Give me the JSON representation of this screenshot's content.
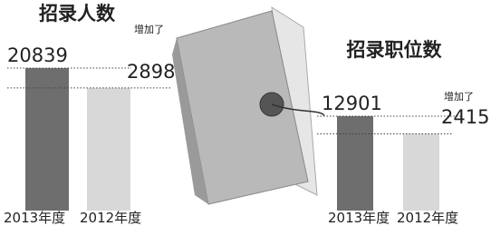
{
  "chart_data": [
    {
      "type": "bar",
      "title": "招录人数",
      "categories": [
        "2013年度",
        "2012年度"
      ],
      "values": [
        20839,
        17941
      ],
      "value_labels": [
        "20839",
        null
      ],
      "colors": [
        "#6e6e6e",
        "#d8d8d8"
      ],
      "annotation": {
        "label": "增加了",
        "value": 2898
      }
    },
    {
      "type": "bar",
      "title": "招录职位数",
      "categories": [
        "2013年度",
        "2012年度"
      ],
      "values": [
        12901,
        10486
      ],
      "value_labels": [
        "12901",
        null
      ],
      "colors": [
        "#6e6e6e",
        "#d8d8d8"
      ],
      "annotation": {
        "label": "增加了",
        "value": 2415
      }
    }
  ]
}
